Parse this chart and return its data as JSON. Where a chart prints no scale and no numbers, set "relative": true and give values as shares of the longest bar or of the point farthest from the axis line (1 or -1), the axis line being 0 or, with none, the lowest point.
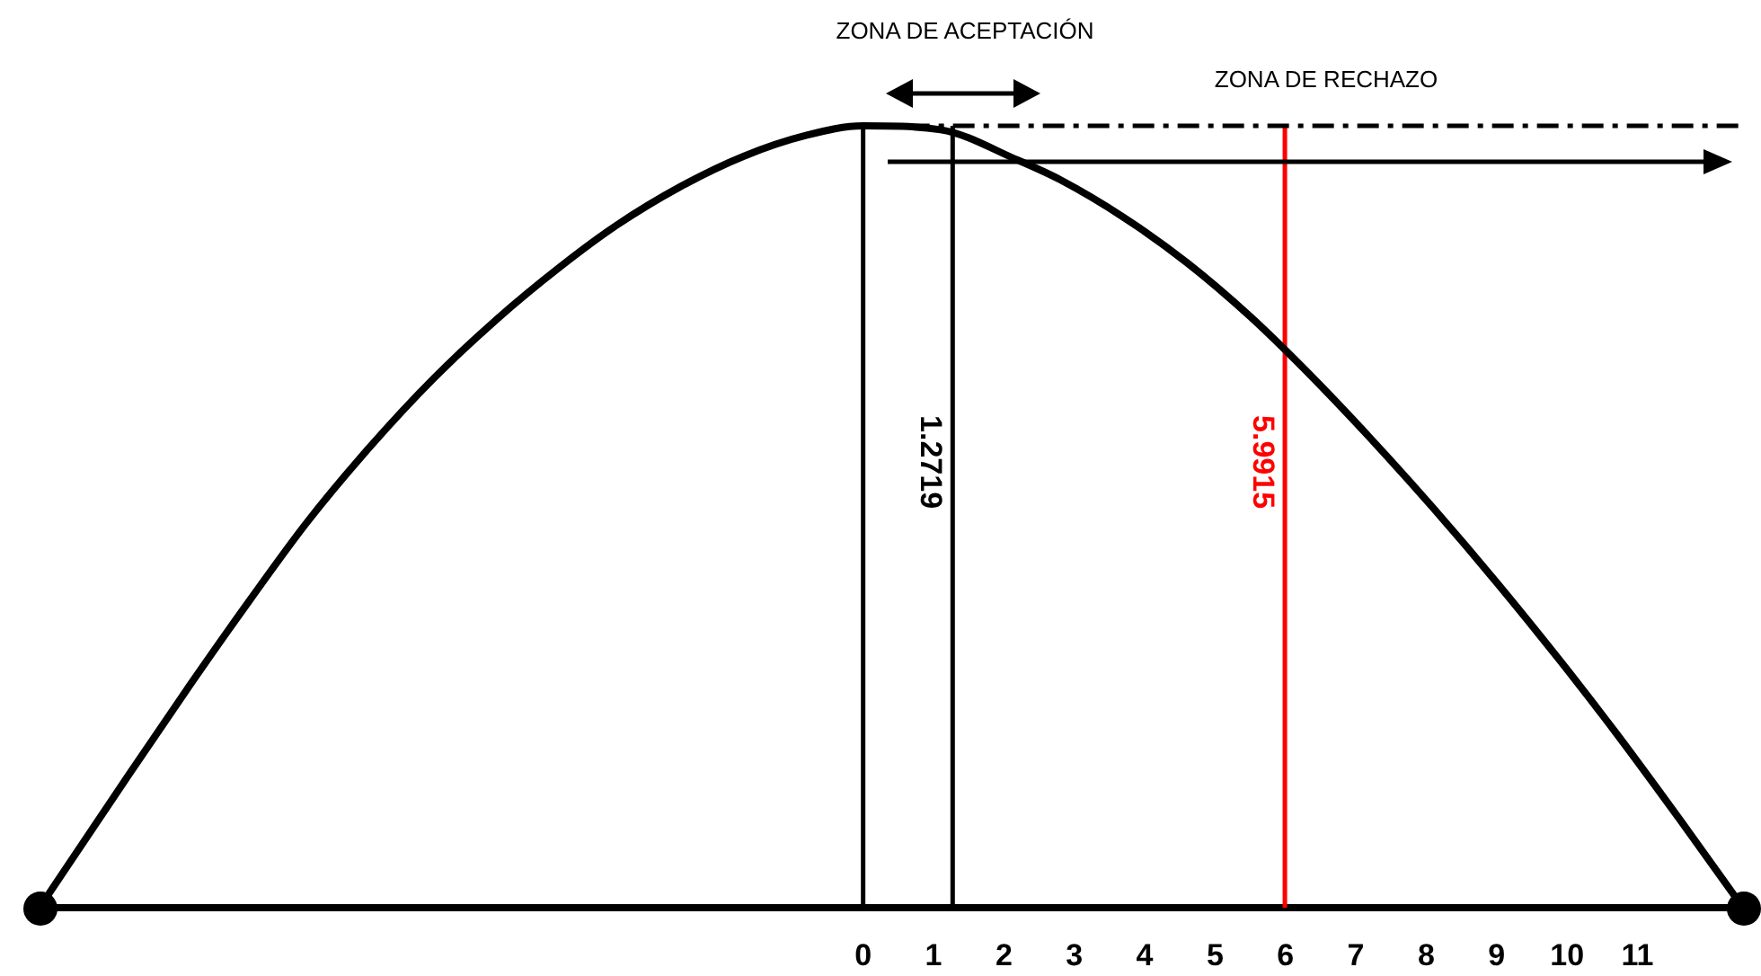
{
  "chart_data": {
    "type": "line",
    "relative": true,
    "x": [
      -11.7,
      -10.5,
      -9.6,
      -8.7,
      -7.9,
      -7.0,
      -6.1,
      -5.2,
      -4.3,
      -3.5,
      -2.6,
      -1.7,
      -0.8,
      0,
      1.1,
      2.2,
      2.8,
      3.7,
      4.6,
      5.5,
      6.3,
      7.2,
      8.1,
      9.0,
      9.9,
      10.7,
      11.6,
      12.5
    ],
    "values": [
      0,
      0.161,
      0.28,
      0.395,
      0.493,
      0.59,
      0.677,
      0.753,
      0.82,
      0.873,
      0.922,
      0.961,
      0.988,
      1,
      0.995,
      0.956,
      0.931,
      0.883,
      0.825,
      0.756,
      0.686,
      0.601,
      0.511,
      0.416,
      0.316,
      0.223,
      0.113,
      0
    ],
    "color": "#000000",
    "marker": "none",
    "grid": false,
    "legend": false,
    "xlim": [
      -11.7,
      12.5
    ],
    "xticks": [
      0,
      1,
      2,
      3,
      4,
      5,
      6,
      7,
      8,
      9,
      10,
      11
    ],
    "ref_lines": [
      {
        "axis": "x",
        "value": 0,
        "color": "#000000"
      },
      {
        "axis": "x",
        "value": 1.2719,
        "label": "1.2719",
        "color": "#000000"
      },
      {
        "axis": "x",
        "value": 5.9915,
        "label": "5.9915",
        "color": "#ff0000"
      },
      {
        "axis": "y",
        "value": 1,
        "color": "#000000",
        "line_style": "dashed"
      }
    ],
    "annotations": [
      "ZONA DE ACEPTACIÓN",
      "ZONA DE RECHAZO"
    ]
  }
}
